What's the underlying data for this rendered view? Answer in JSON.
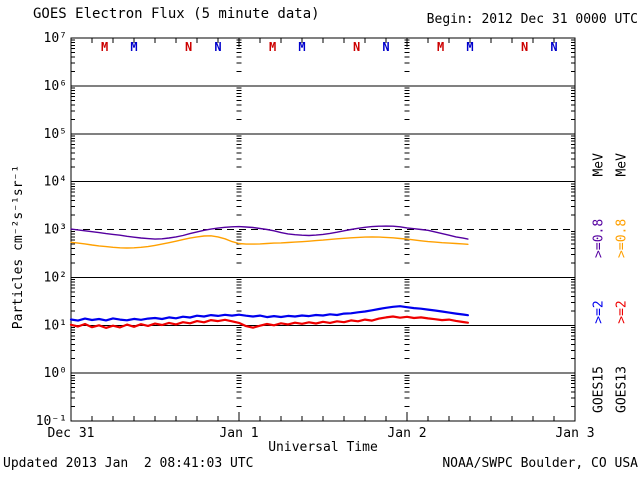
{
  "header": {
    "title": "GOES Electron Flux (5 minute data)",
    "begin": "Begin: 2012 Dec 31 0000 UTC"
  },
  "footer": {
    "updated": "Updated 2013 Jan  2 08:41:03 UTC",
    "source": "NOAA/SWPC Boulder, CO USA"
  },
  "legend": {
    "columns": [
      {
        "satellite": "GOES15",
        "e2_label": ">=2",
        "e2_color": "#0000ee",
        "e08_label": ">=0.8",
        "e08_color": "#5500a0",
        "unit": "MeV",
        "name_color": "#000000"
      },
      {
        "satellite": "GOES13",
        "e2_label": ">=2",
        "e2_color": "#ee0000",
        "e08_label": ">=0.8",
        "e08_color": "#ffa000",
        "unit": "MeV",
        "name_color": "#000000"
      }
    ]
  },
  "chart_data": {
    "type": "line",
    "title": "GOES Electron Flux (5 minute data)",
    "xlabel": "Universal Time",
    "ylabel": "Particles cm⁻²s⁻¹sr⁻¹",
    "y_scale": "log",
    "ylim_exponents": [
      7,
      -1
    ],
    "ytick_labels": [
      "10⁷",
      "10⁶",
      "10⁵",
      "10⁴",
      "10³",
      "10²",
      "10¹",
      "10⁰",
      "10⁻¹"
    ],
    "xlim_hours": [
      0,
      72
    ],
    "xticks": [
      {
        "hour": 0,
        "label": "Dec 31"
      },
      {
        "hour": 24,
        "label": "Jan 1"
      },
      {
        "hour": 48,
        "label": "Jan 2"
      },
      {
        "hour": 72,
        "label": "Jan 3"
      }
    ],
    "minor_xtick_interval_hours": 3,
    "day_line_hours": [
      24,
      48
    ],
    "threshold": {
      "value": 1000,
      "style": "dashed"
    },
    "axis_color": "#000000",
    "x_hours": [
      0,
      1,
      2,
      3,
      4,
      5,
      6,
      7,
      8,
      9,
      10,
      11,
      12,
      13,
      14,
      15,
      16,
      17,
      18,
      19,
      20,
      21,
      22,
      23,
      24,
      25,
      26,
      27,
      28,
      29,
      30,
      31,
      32,
      33,
      34,
      35,
      36,
      37,
      38,
      39,
      40,
      41,
      42,
      43,
      44,
      45,
      46,
      47,
      48,
      49,
      50,
      51,
      52,
      53,
      54,
      55,
      56,
      56.7
    ],
    "series": [
      {
        "name": "GOES15 >=0.8 MeV",
        "color": "#5500a0",
        "width": 1.4,
        "y": [
          1020,
          980,
          940,
          900,
          860,
          820,
          790,
          760,
          720,
          690,
          665,
          645,
          630,
          640,
          665,
          700,
          750,
          820,
          890,
          960,
          1020,
          1070,
          1110,
          1140,
          1150,
          1130,
          1100,
          1050,
          1000,
          940,
          860,
          810,
          780,
          760,
          750,
          765,
          790,
          830,
          880,
          940,
          1000,
          1060,
          1110,
          1150,
          1170,
          1180,
          1170,
          1140,
          1080,
          1040,
          1000,
          960,
          890,
          820,
          760,
          700,
          660,
          630
        ]
      },
      {
        "name": "GOES13 >=0.8 MeV",
        "color": "#ffa000",
        "width": 1.4,
        "y": [
          540,
          520,
          500,
          475,
          455,
          440,
          425,
          415,
          410,
          415,
          425,
          440,
          465,
          495,
          530,
          570,
          615,
          660,
          700,
          730,
          740,
          700,
          640,
          560,
          510,
          495,
          495,
          500,
          510,
          520,
          525,
          535,
          545,
          555,
          570,
          585,
          600,
          620,
          640,
          655,
          670,
          685,
          695,
          700,
          695,
          685,
          670,
          650,
          630,
          605,
          580,
          560,
          545,
          530,
          520,
          510,
          500,
          490
        ]
      },
      {
        "name": "GOES15 >=2 MeV",
        "color": "#0000ee",
        "width": 2.2,
        "y": [
          13.2,
          12.5,
          13.8,
          12.9,
          13.5,
          12.6,
          13.9,
          13.1,
          12.7,
          13.6,
          13.0,
          13.8,
          14.2,
          13.5,
          14.6,
          14.0,
          15.1,
          14.5,
          15.8,
          15.2,
          16.3,
          15.7,
          16.5,
          15.9,
          16.6,
          15.8,
          15.2,
          15.9,
          14.8,
          15.5,
          14.9,
          15.7,
          15.2,
          16.0,
          15.5,
          16.4,
          16.0,
          16.9,
          16.4,
          17.5,
          17.8,
          18.6,
          19.4,
          20.5,
          21.8,
          23.2,
          24.3,
          25.0,
          23.8,
          22.8,
          22.2,
          21.2,
          20.3,
          19.4,
          18.4,
          17.5,
          16.8,
          16.2
        ]
      },
      {
        "name": "GOES13 >=2 MeV",
        "color": "#ee0000",
        "width": 2.2,
        "y": [
          10.2,
          9.4,
          10.6,
          9.1,
          10.0,
          8.8,
          9.8,
          9.0,
          10.3,
          9.3,
          10.5,
          9.7,
          10.8,
          10.1,
          11.2,
          10.4,
          11.6,
          11.0,
          12.2,
          11.5,
          12.8,
          12.2,
          13.0,
          12.1,
          11.2,
          9.6,
          8.9,
          9.8,
          10.6,
          10.0,
          11.0,
          10.4,
          11.3,
          10.7,
          11.5,
          10.9,
          11.8,
          11.2,
          12.1,
          11.6,
          12.6,
          12.1,
          13.1,
          12.5,
          13.8,
          14.6,
          15.2,
          14.4,
          15.0,
          14.2,
          14.6,
          13.9,
          13.4,
          12.8,
          13.1,
          12.3,
          11.7,
          11.3
        ]
      }
    ],
    "local_time_markers": {
      "day_start_hours": [
        0,
        24,
        48
      ],
      "items": [
        {
          "label": "M",
          "hour": 4.8,
          "color": "#cc0000"
        },
        {
          "label": "M",
          "hour": 9.0,
          "color": "#0000cc"
        },
        {
          "label": "N",
          "hour": 16.8,
          "color": "#cc0000"
        },
        {
          "label": "N",
          "hour": 21.0,
          "color": "#0000cc"
        }
      ]
    }
  }
}
